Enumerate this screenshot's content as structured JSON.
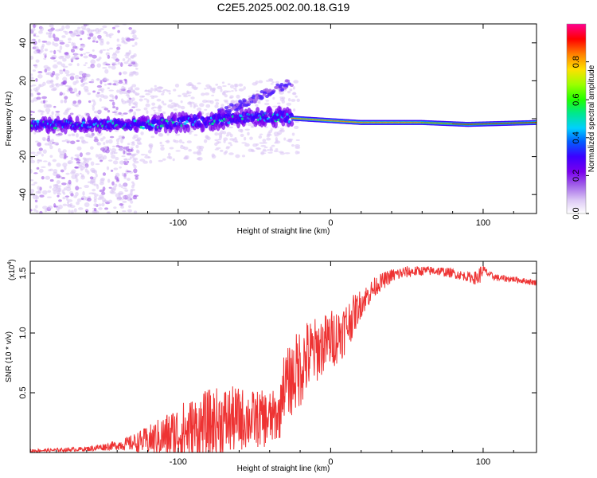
{
  "title": "C2E5.2025.002.00.18.G19",
  "chart_data": [
    {
      "type": "heatmap",
      "xlabel": "Height of straight line (km)",
      "ylabel": "Frequency (Hz)",
      "xlim": [
        -197,
        135
      ],
      "ylim": [
        -50,
        50
      ],
      "x_ticks": [
        -100,
        0,
        100
      ],
      "y_ticks": [
        -40,
        -20,
        0,
        20,
        40
      ],
      "colorbar": {
        "label": "Normalized spectral amplitude",
        "range": [
          0,
          1
        ],
        "ticks": [
          "0.0",
          "0.2",
          "0.4",
          "0.6",
          "0.8"
        ],
        "colors": [
          "#ffffff",
          "#dcc8f5",
          "#a060e8",
          "#7a00ee",
          "#3c00ff",
          "#0060ff",
          "#00d0ff",
          "#00e88a",
          "#20ff00",
          "#9cff00",
          "#ffe000",
          "#ff8000",
          "#ff0000",
          "#ff0090"
        ]
      },
      "ridge": [
        {
          "x": -197,
          "f": -3
        },
        {
          "x": -160,
          "f": -3
        },
        {
          "x": -120,
          "f": -3
        },
        {
          "x": -100,
          "f": -2
        },
        {
          "x": -80,
          "f": -1
        },
        {
          "x": -60,
          "f": 0
        },
        {
          "x": -40,
          "f": 1
        },
        {
          "x": -20,
          "f": 0
        },
        {
          "x": 0,
          "f": -1
        },
        {
          "x": 20,
          "f": -2
        },
        {
          "x": 60,
          "f": -2
        },
        {
          "x": 90,
          "f": -3
        },
        {
          "x": 135,
          "f": -2
        }
      ]
    },
    {
      "type": "line",
      "xlabel": "Height of straight line (km)",
      "ylabel": "SNR (10 * v/v)",
      "y_multiplier_base": "(x10",
      "y_multiplier_exp": "4",
      "y_multiplier_close": ")",
      "xlim": [
        -197,
        135
      ],
      "ylim": [
        0,
        16000
      ],
      "x_ticks": [
        -100,
        0,
        100
      ],
      "y_ticks": [
        5000,
        10000,
        15000
      ],
      "y_tick_labels": [
        "0.5",
        "1.0",
        "1.5"
      ],
      "series": [
        {
          "color": "#ee3333",
          "x": [
            -197,
            -180,
            -160,
            -140,
            -130,
            -120,
            -110,
            -100,
            -90,
            -80,
            -70,
            -60,
            -50,
            -40,
            -33,
            -32,
            -25,
            -20,
            -15,
            -10,
            -5,
            0,
            5,
            10,
            20,
            30,
            40,
            50,
            60,
            70,
            80,
            90,
            96,
            97,
            100,
            105,
            110,
            120,
            130,
            135
          ],
          "mid": [
            150,
            200,
            300,
            600,
            800,
            1000,
            1300,
            1600,
            1900,
            2300,
            2600,
            2800,
            2800,
            2800,
            3200,
            5500,
            6200,
            7200,
            8000,
            8500,
            9000,
            9500,
            9800,
            10500,
            12500,
            14000,
            14800,
            15100,
            15200,
            15200,
            15000,
            14700,
            14600,
            14700,
            15300,
            14800,
            14600,
            14500,
            14300,
            14200
          ],
          "amp": [
            150,
            150,
            200,
            400,
            700,
            1200,
            1800,
            2500,
            2800,
            3000,
            3000,
            2700,
            2400,
            2400,
            2000,
            2500,
            3200,
            3500,
            3200,
            2800,
            2500,
            2500,
            2400,
            2200,
            1200,
            800,
            600,
            500,
            400,
            400,
            400,
            400,
            600,
            900,
            400,
            300,
            300,
            250,
            250,
            250
          ]
        }
      ]
    }
  ]
}
